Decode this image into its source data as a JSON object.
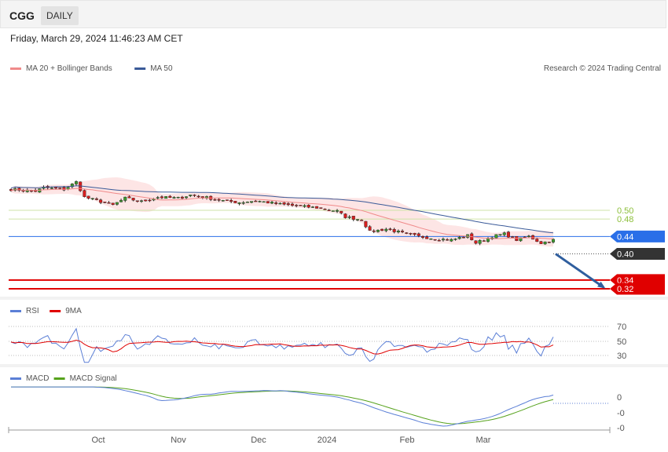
{
  "header": {
    "ticker": "CGG",
    "period": "DAILY"
  },
  "timestamp": "Friday, March 29, 2024 11:46:23 AM CET",
  "legend": {
    "main": [
      {
        "label": "MA 20 + Bollinger Bands",
        "color": "#f08a8a"
      },
      {
        "label": "MA 50",
        "color": "#3a5a98"
      }
    ],
    "rsi": [
      {
        "label": "RSI",
        "color": "#5b7fd6"
      },
      {
        "label": "9MA",
        "color": "#e00000"
      }
    ],
    "macd": [
      {
        "label": "MACD",
        "color": "#5b7fd6"
      },
      {
        "label": "MACD Signal",
        "color": "#56a21c"
      }
    ]
  },
  "copyright": "Research © 2024 Trading Central",
  "chart_data": {
    "type": "candlestick",
    "price_axis": {
      "range": [
        0.32,
        0.56
      ]
    },
    "levels": [
      {
        "value": 0.5,
        "label": "0.50",
        "kind": "resistance",
        "color": "#8cbf3a"
      },
      {
        "value": 0.48,
        "label": "0.48",
        "kind": "resistance",
        "color": "#8cbf3a"
      },
      {
        "value": 0.44,
        "label": "0.44",
        "kind": "pivot",
        "color": "#2a6fe8"
      },
      {
        "value": 0.4,
        "label": "0.40",
        "kind": "last",
        "color": "#333333"
      },
      {
        "value": 0.34,
        "label": "0.34",
        "kind": "target",
        "color": "#e00000"
      },
      {
        "value": 0.32,
        "label": "0.32",
        "kind": "target",
        "color": "#e00000"
      }
    ],
    "x_labels": [
      "Oct",
      "Nov",
      "Dec",
      "2024",
      "Feb",
      "Mar"
    ],
    "projection": {
      "direction": "down",
      "target": 0.32
    },
    "close_path": [
      [
        0,
        0.548
      ],
      [
        6,
        0.544
      ],
      [
        8,
        0.552
      ],
      [
        13,
        0.548
      ],
      [
        16,
        0.565
      ],
      [
        18,
        0.53
      ],
      [
        22,
        0.52
      ],
      [
        25,
        0.512
      ],
      [
        28,
        0.528
      ],
      [
        32,
        0.52
      ],
      [
        36,
        0.53
      ],
      [
        41,
        0.528
      ],
      [
        44,
        0.535
      ],
      [
        47,
        0.531
      ],
      [
        52,
        0.522
      ],
      [
        56,
        0.518
      ],
      [
        60,
        0.522
      ],
      [
        66,
        0.514
      ],
      [
        70,
        0.51
      ],
      [
        75,
        0.506
      ],
      [
        80,
        0.498
      ],
      [
        82,
        0.485
      ],
      [
        86,
        0.478
      ],
      [
        88,
        0.451
      ],
      [
        92,
        0.457
      ],
      [
        96,
        0.448
      ],
      [
        100,
        0.44
      ],
      [
        104,
        0.435
      ],
      [
        108,
        0.432
      ],
      [
        112,
        0.442
      ],
      [
        114,
        0.425
      ],
      [
        118,
        0.44
      ],
      [
        121,
        0.446
      ],
      [
        124,
        0.432
      ],
      [
        127,
        0.44
      ],
      [
        130,
        0.425
      ],
      [
        133,
        0.432
      ]
    ],
    "rsi": {
      "levels": [
        70,
        50,
        30
      ],
      "labels": [
        "70",
        "50",
        "30"
      ]
    },
    "macd": {
      "levels": [
        "0",
        "-0",
        "-0"
      ]
    }
  }
}
